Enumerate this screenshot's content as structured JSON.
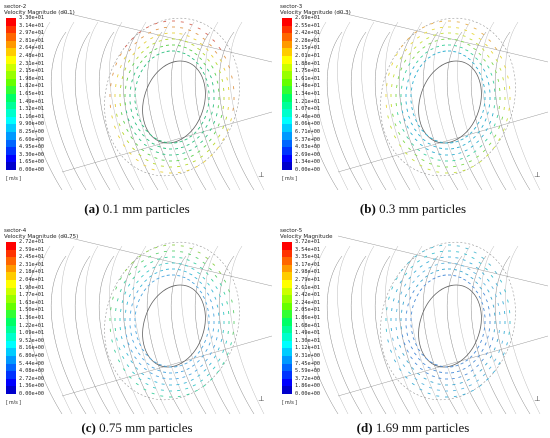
{
  "panels": [
    {
      "sector": "sector-2",
      "quantity": "Velocity Magnitude (d0.1)",
      "caption_label": "(a)",
      "caption_text": "0.1 mm particles",
      "unit": "[ m/s ]",
      "ticks": [
        "3.30e+01",
        "3.14e+01",
        "2.97e+01",
        "2.81e+01",
        "2.64e+01",
        "2.48e+01",
        "2.31e+01",
        "2.15e+01",
        "1.98e+01",
        "1.82e+01",
        "1.65e+01",
        "1.49e+01",
        "1.32e+01",
        "1.16e+01",
        "9.90e+00",
        "8.25e+00",
        "6.60e+00",
        "4.95e+00",
        "3.30e+00",
        "1.65e+00",
        "0.00e+00"
      ],
      "ring_colors": [
        "#d86a5a",
        "#e09a50",
        "#e8d040",
        "#b8d830",
        "#60d050",
        "#30c080"
      ]
    },
    {
      "sector": "sector-3",
      "quantity": "Velocity Magnitude (d0.3)",
      "caption_label": "(b)",
      "caption_text": "0.3 mm particles",
      "unit": "[ m/s ]",
      "ticks": [
        "2.69e+01",
        "2.55e+01",
        "2.42e+01",
        "2.28e+01",
        "2.15e+01",
        "2.01e+01",
        "1.88e+01",
        "1.75e+01",
        "1.61e+01",
        "1.48e+01",
        "1.34e+01",
        "1.21e+01",
        "1.07e+01",
        "9.40e+00",
        "8.06e+00",
        "6.71e+00",
        "5.37e+00",
        "4.03e+00",
        "2.69e+00",
        "1.34e+00",
        "0.00e+00"
      ],
      "ring_colors": [
        "#e8b050",
        "#e8d840",
        "#c8e040",
        "#80d850",
        "#40d0a0",
        "#30b0d0"
      ]
    },
    {
      "sector": "sector-4",
      "quantity": "Velocity Magnitude (d0.75)",
      "caption_label": "(c)",
      "caption_text": "0.75 mm particles",
      "unit": "[ m/s ]",
      "ticks": [
        "2.72e+01",
        "2.59e+01",
        "2.45e+01",
        "2.31e+01",
        "2.18e+01",
        "2.04e+01",
        "1.90e+01",
        "1.77e+01",
        "1.63e+01",
        "1.50e+01",
        "1.36e+01",
        "1.22e+01",
        "1.09e+01",
        "9.52e+00",
        "8.16e+00",
        "6.80e+00",
        "5.44e+00",
        "4.08e+00",
        "2.72e+00",
        "1.36e+00",
        "0.00e+00"
      ],
      "ring_colors": [
        "#90d050",
        "#60d070",
        "#40d0a0",
        "#40c8c8",
        "#40b8d8",
        "#50a8e0"
      ]
    },
    {
      "sector": "sector-5",
      "quantity": "Velocity Magnitude",
      "caption_label": "(d)",
      "caption_text": "1.69 mm particles",
      "unit": "[ m/s ]",
      "ticks": [
        "3.72e+01",
        "3.54e+01",
        "3.35e+01",
        "3.17e+01",
        "2.98e+01",
        "2.79e+01",
        "2.61e+01",
        "2.42e+01",
        "2.24e+01",
        "2.05e+01",
        "1.86e+01",
        "1.68e+01",
        "1.49e+01",
        "1.30e+01",
        "1.12e+01",
        "9.31e+00",
        "7.45e+00",
        "5.59e+00",
        "3.72e+00",
        "1.86e+00",
        "0.00e+00"
      ],
      "ring_colors": [
        "#50b8d0",
        "#40c0d0",
        "#40b0d8",
        "#60b8e0",
        "#40a8d0",
        "#5090d8"
      ]
    }
  ],
  "colorbar": [
    "#ff0000",
    "#ff3300",
    "#ff6600",
    "#ff9900",
    "#ffcc00",
    "#ffff00",
    "#ccff00",
    "#99ff00",
    "#66ff00",
    "#33ff33",
    "#00ff66",
    "#00ff99",
    "#00ffcc",
    "#00ffff",
    "#00ccff",
    "#0099ff",
    "#0066ff",
    "#0033ff",
    "#0000ff",
    "#0000cc"
  ]
}
